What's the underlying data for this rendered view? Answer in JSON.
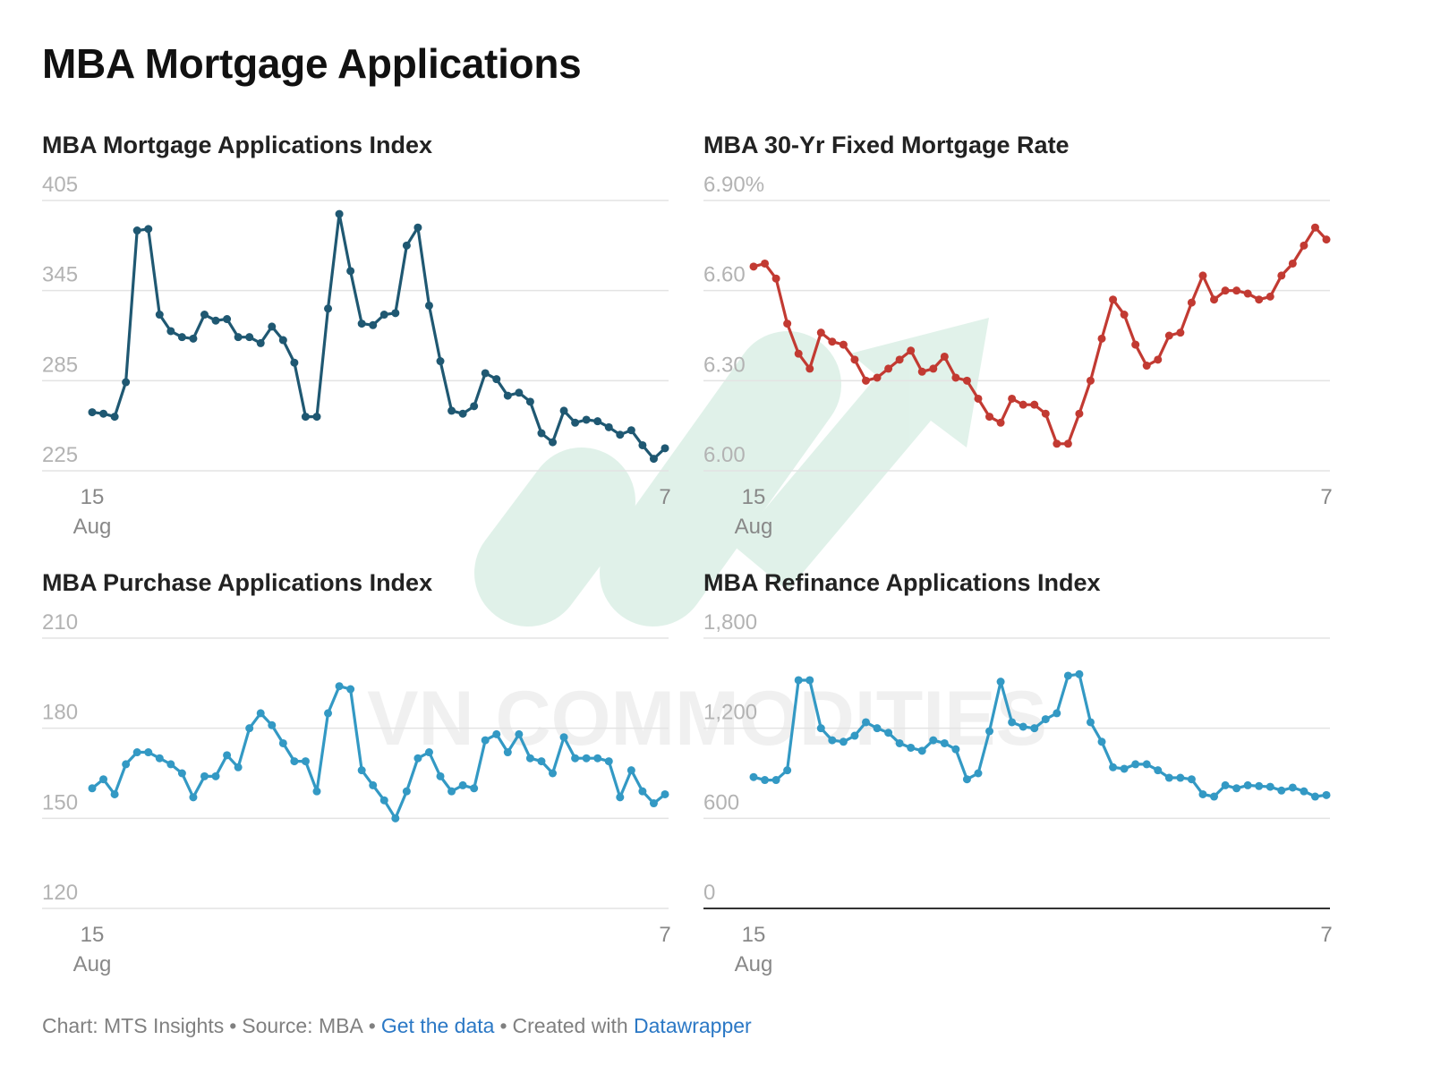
{
  "title": "MBA Mortgage Applications",
  "charts": [
    {
      "title": "MBA Mortgage Applications Index"
    },
    {
      "title": "MBA 30-Yr Fixed Mortgage Rate"
    },
    {
      "title": "MBA Purchase Applications Index"
    },
    {
      "title": "MBA Refinance Applications Index"
    }
  ],
  "footer": {
    "chart_label": "Chart: MTS Insights",
    "source_label": "Source: MBA",
    "get_data_link": "Get the data",
    "created_with": "Created with",
    "datawrapper_link": "Datawrapper"
  },
  "watermark": {
    "text": "VN COMMODITIES"
  },
  "chart_data": [
    {
      "type": "line",
      "title": "MBA Mortgage Applications Index",
      "color": "#1f5872",
      "ylim": [
        225,
        405
      ],
      "yticks": [
        "405",
        "345",
        "285",
        "225"
      ],
      "yticks_values": [
        405,
        345,
        285,
        225
      ],
      "xtick_first": [
        "15",
        "Aug"
      ],
      "xtick_last": [
        "7"
      ],
      "baseline_dark": false,
      "values": [
        264,
        263,
        261,
        284,
        385,
        386,
        329,
        318,
        314,
        313,
        329,
        325,
        326,
        314,
        314,
        310,
        321,
        312,
        297,
        261,
        261,
        333,
        396,
        358,
        323,
        322,
        329,
        330,
        375,
        387,
        335,
        298,
        265,
        263,
        268,
        290,
        286,
        275,
        277,
        271,
        250,
        244,
        265,
        257,
        259,
        258,
        254,
        249,
        252,
        242,
        233,
        240
      ]
    },
    {
      "type": "line",
      "title": "MBA 30-Yr Fixed Mortgage Rate",
      "color": "#c23a32",
      "ylim": [
        6.0,
        6.9
      ],
      "yticks": [
        "6.90%",
        "6.60",
        "6.30",
        "6.00"
      ],
      "yticks_values": [
        6.9,
        6.6,
        6.3,
        6.0
      ],
      "xtick_first": [
        "15",
        "Aug"
      ],
      "xtick_last": [
        "7"
      ],
      "baseline_dark": false,
      "values": [
        6.68,
        6.69,
        6.64,
        6.49,
        6.39,
        6.34,
        6.46,
        6.43,
        6.42,
        6.37,
        6.3,
        6.31,
        6.34,
        6.37,
        6.4,
        6.33,
        6.34,
        6.38,
        6.31,
        6.3,
        6.24,
        6.18,
        6.16,
        6.24,
        6.22,
        6.22,
        6.19,
        6.09,
        6.09,
        6.19,
        6.3,
        6.44,
        6.57,
        6.52,
        6.42,
        6.35,
        6.37,
        6.45,
        6.46,
        6.56,
        6.65,
        6.57,
        6.6,
        6.6,
        6.59,
        6.57,
        6.58,
        6.65,
        6.69,
        6.75,
        6.81,
        6.77
      ]
    },
    {
      "type": "line",
      "title": "MBA Purchase Applications Index",
      "color": "#3399c4",
      "ylim": [
        120,
        210
      ],
      "yticks": [
        "210",
        "180",
        "150",
        "120"
      ],
      "yticks_values": [
        210,
        180,
        150,
        120
      ],
      "xtick_first": [
        "15",
        "Aug"
      ],
      "xtick_last": [
        "7"
      ],
      "baseline_dark": false,
      "values": [
        160,
        163,
        158,
        168,
        172,
        172,
        170,
        168,
        165,
        157,
        164,
        164,
        171,
        167,
        180,
        185,
        181,
        175,
        169,
        169,
        159,
        185,
        194,
        193,
        166,
        161,
        156,
        150,
        159,
        170,
        172,
        164,
        159,
        161,
        160,
        176,
        178,
        172,
        178,
        170,
        169,
        165,
        177,
        170,
        170,
        170,
        169,
        157,
        166,
        159,
        155,
        158
      ]
    },
    {
      "type": "line",
      "title": "MBA Refinance Applications Index",
      "color": "#3399c4",
      "ylim": [
        0,
        1800
      ],
      "yticks": [
        "1,800",
        "1,200",
        "600",
        "0"
      ],
      "yticks_values": [
        1800,
        1200,
        600,
        0
      ],
      "xtick_first": [
        "15",
        "Aug"
      ],
      "xtick_last": [
        "7"
      ],
      "baseline_dark": true,
      "values": [
        875,
        855,
        855,
        920,
        1520,
        1520,
        1200,
        1120,
        1110,
        1150,
        1240,
        1200,
        1170,
        1100,
        1070,
        1050,
        1120,
        1100,
        1060,
        860,
        900,
        1180,
        1510,
        1240,
        1210,
        1200,
        1260,
        1300,
        1550,
        1560,
        1240,
        1110,
        940,
        930,
        960,
        960,
        920,
        870,
        870,
        860,
        760,
        745,
        820,
        800,
        820,
        815,
        810,
        785,
        805,
        780,
        745,
        755
      ]
    }
  ]
}
